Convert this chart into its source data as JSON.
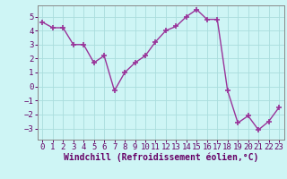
{
  "x": [
    0,
    1,
    2,
    3,
    4,
    5,
    6,
    7,
    8,
    9,
    10,
    11,
    12,
    13,
    14,
    15,
    16,
    17,
    18,
    19,
    20,
    21,
    22,
    23
  ],
  "y": [
    4.6,
    4.2,
    4.2,
    3.0,
    3.0,
    1.7,
    2.2,
    -0.3,
    1.0,
    1.7,
    2.2,
    3.2,
    4.0,
    4.3,
    5.0,
    5.5,
    4.8,
    4.8,
    -0.3,
    -2.6,
    -2.1,
    -3.1,
    -2.5,
    -1.5
  ],
  "line_color": "#993399",
  "marker": "+",
  "marker_size": 5,
  "marker_linewidth": 1.2,
  "bg_color": "#cef5f5",
  "grid_color": "#aadddd",
  "xlabel": "Windchill (Refroidissement éolien,°C)",
  "xlabel_color": "#660066",
  "tick_color": "#660066",
  "axis_color": "#888888",
  "ylim": [
    -3.8,
    5.8
  ],
  "xlim": [
    -0.5,
    23.5
  ],
  "yticks": [
    -3,
    -2,
    -1,
    0,
    1,
    2,
    3,
    4,
    5
  ],
  "xticks": [
    0,
    1,
    2,
    3,
    4,
    5,
    6,
    7,
    8,
    9,
    10,
    11,
    12,
    13,
    14,
    15,
    16,
    17,
    18,
    19,
    20,
    21,
    22,
    23
  ],
  "tick_fontsize": 6.5,
  "xlabel_fontsize": 7,
  "linewidth": 1.0
}
